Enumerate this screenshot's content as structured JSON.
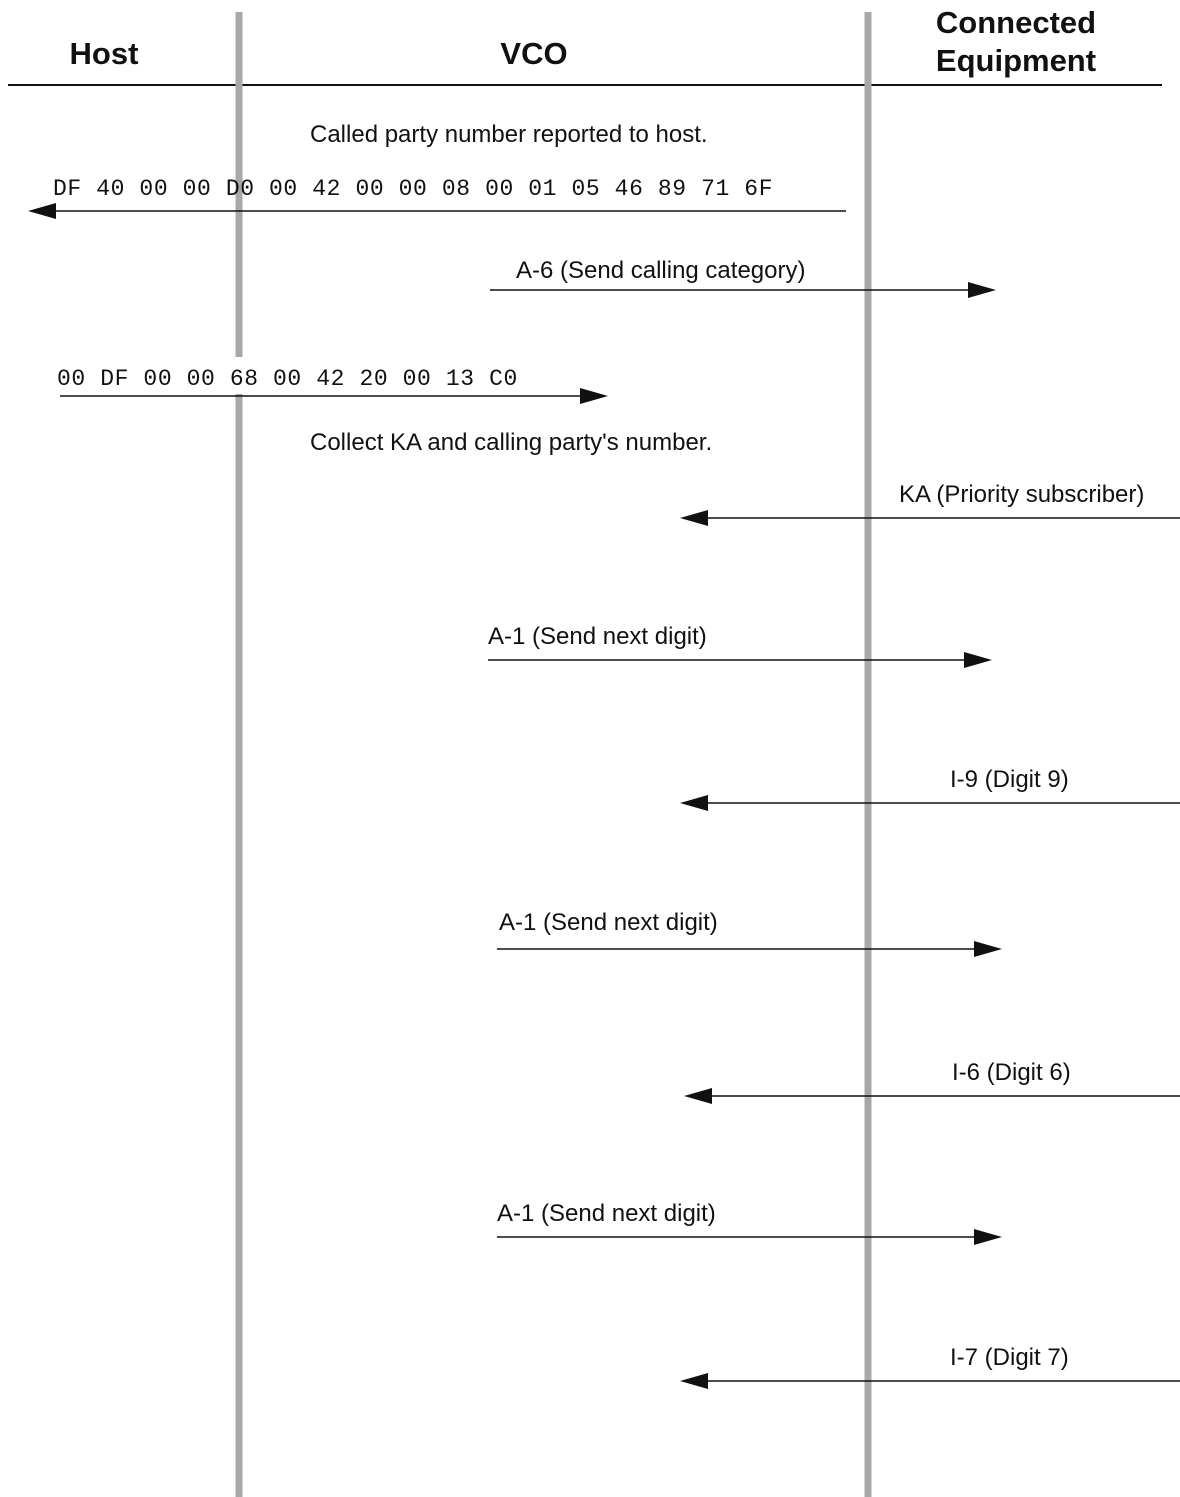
{
  "lanes": {
    "host": "Host",
    "vco": "VCO",
    "equipment_line1": "Connected",
    "equipment_line2": "Equipment"
  },
  "notes": {
    "called_party": "Called party number reported to host.",
    "collect_ka": "Collect KA and calling party's number."
  },
  "messages": {
    "hex_report": "DF 40 00 00 D0 00 42 00 00 08 00 01 05 46 89 71 6F",
    "a6": "A-6 (Send calling category)",
    "hex_cmd": "00 DF 00 00 68 00 42 20 00 13 C0",
    "ka": "KA (Priority subscriber)",
    "a1_first": "A-1 (Send next digit)",
    "i9": "I-9 (Digit 9)",
    "a1_second": "A-1 (Send next digit)",
    "i6": "I-6 (Digit 6)",
    "a1_third": "A-1 (Send next digit)",
    "i7": "I-7 (Digit 7)"
  }
}
